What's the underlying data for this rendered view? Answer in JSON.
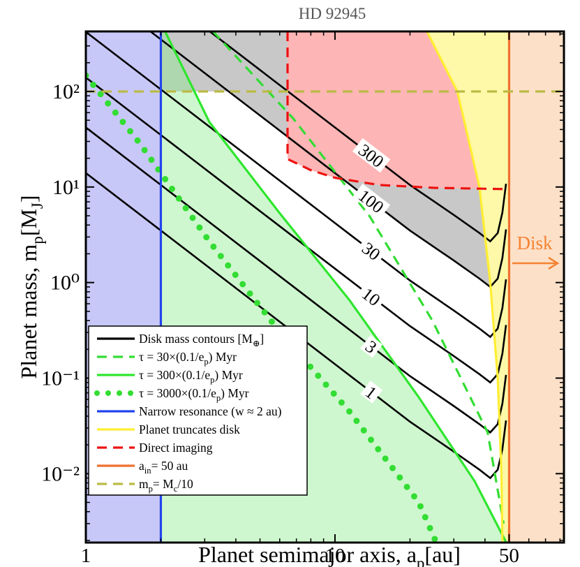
{
  "chart_data": {
    "type": "line",
    "title": "HD 92945",
    "xlabel": [
      "Planet semimajor axis, a",
      "p",
      "[au]"
    ],
    "ylabel": [
      "Planet mass, m",
      "p",
      "[M",
      "J",
      "]"
    ],
    "xscale": "log",
    "yscale": "log",
    "xlim": [
      1,
      83
    ],
    "ylim": [
      0.0019,
      425
    ],
    "xticks": [
      1,
      10,
      50
    ],
    "xminorticks": [
      2,
      3,
      4,
      5,
      6,
      7,
      8,
      9,
      20,
      30,
      40,
      60,
      70,
      80
    ],
    "yticks": [
      {
        "value": 0.01,
        "label": "10⁻²"
      },
      {
        "value": 0.1,
        "label": "10⁻¹"
      },
      {
        "value": 1,
        "label": "10⁰"
      },
      {
        "value": 10,
        "label": "10¹"
      },
      {
        "value": 100,
        "label": "10²"
      }
    ],
    "yminorticks": [
      0.002,
      0.003,
      0.004,
      0.005,
      0.006,
      0.007,
      0.008,
      0.009,
      0.02,
      0.03,
      0.04,
      0.05,
      0.06,
      0.07,
      0.08,
      0.09,
      0.2,
      0.3,
      0.4,
      0.5,
      0.6,
      0.7,
      0.8,
      0.9,
      2,
      3,
      4,
      5,
      6,
      7,
      8,
      9,
      20,
      30,
      40,
      50,
      60,
      70,
      80,
      90,
      200,
      300,
      400
    ],
    "legend": "lower left",
    "series": [
      {
        "name": [
          "Disk mass contours [M",
          "⊕",
          "]"
        ],
        "color": "#000000",
        "style": "solid",
        "fill": "#c8c8c8",
        "levels": [
          1,
          3,
          10,
          30,
          100,
          300
        ],
        "x": [
          1,
          2,
          5,
          10,
          20,
          30,
          38,
          42,
          45,
          47,
          48.6
        ],
        "values": [
          [
            14,
            3.5,
            0.56,
            0.14,
            0.035,
            0.017,
            0.011,
            0.009,
            0.011,
            0.018,
            0.036
          ],
          [
            42,
            10.5,
            1.68,
            0.42,
            0.105,
            0.051,
            0.033,
            0.027,
            0.033,
            0.054,
            0.108
          ],
          [
            140,
            35,
            5.6,
            1.4,
            0.35,
            0.17,
            0.11,
            0.09,
            0.11,
            0.18,
            0.36
          ],
          [
            420,
            105,
            16.8,
            4.2,
            1.05,
            0.51,
            0.33,
            0.27,
            0.33,
            0.54,
            1.08
          ],
          [
            1400,
            350,
            56,
            14,
            3.5,
            1.7,
            1.1,
            0.9,
            1.1,
            1.8,
            3.6
          ],
          [
            4200,
            1050,
            168,
            42,
            10.5,
            5.1,
            3.3,
            2.7,
            3.3,
            5.4,
            10.8
          ]
        ]
      },
      {
        "name": [
          "τ = 30×(0.1/e",
          "p",
          ") Myr"
        ],
        "color": "#33dd33",
        "style": "dashed",
        "x": [
          3.24,
          6.8,
          13.8,
          24.6,
          41,
          47.5
        ],
        "values": [
          425,
          52,
          4.9,
          0.4,
          0.027,
          0.003
        ]
      },
      {
        "name": [
          "τ = 300×(0.1/e",
          "p",
          ") Myr"
        ],
        "color": "#2ee62e",
        "style": "solid",
        "fill": "rgba(140,235,140,0.42)",
        "x": [
          2.08,
          3.13,
          5.97,
          11.4,
          21.7,
          36.4,
          48.7
        ],
        "values": [
          425,
          48,
          5.4,
          0.66,
          0.063,
          0.0083,
          0.0019
        ]
      },
      {
        "name": [
          "τ = 3000×(0.1/e",
          "p",
          ") Myr"
        ],
        "color": "#33dd33",
        "style": "dotted",
        "x": [
          1,
          1.64,
          3.13,
          5.97,
          11.4,
          21.7,
          25.5
        ],
        "values": [
          147,
          29,
          2.7,
          0.31,
          0.045,
          0.005,
          0.0019
        ]
      },
      {
        "name": [
          "Narrow resonance (w ≈ 2 au)"
        ],
        "color": "#2244ee",
        "style": "solid",
        "fill": "#c8c8f8",
        "x": 2
      },
      {
        "name": [
          "Planet truncates disk"
        ],
        "color": "#ffee33",
        "style": "solid",
        "fill": "#fdf9a8",
        "x": [
          23.4,
          31,
          38,
          42,
          45,
          46.6,
          47
        ],
        "values": [
          425,
          100,
          10,
          1,
          0.1,
          0.01,
          0.0019
        ]
      },
      {
        "name": [
          "Direct imaging"
        ],
        "color": "#ee1111",
        "style": "dashed",
        "fill": "#fdb5b5",
        "x": [
          6.45,
          6.45,
          8,
          10,
          15,
          25,
          50
        ],
        "values": [
          425,
          19.6,
          15,
          12.5,
          10.5,
          9.8,
          9.5
        ]
      },
      {
        "name": [
          "a",
          "in",
          "= 50 au"
        ],
        "color": "#f07030",
        "style": "solid",
        "fill": "#fde0c8",
        "x": 50
      },
      {
        "name": [
          "m",
          "p",
          "= M",
          "c",
          "/10"
        ],
        "color": "#bbbb44",
        "style": "dashed",
        "fill": "#c8c8c8",
        "value": 100
      }
    ],
    "annotations": [
      {
        "text": "Disk",
        "color": "#f58231"
      }
    ]
  }
}
